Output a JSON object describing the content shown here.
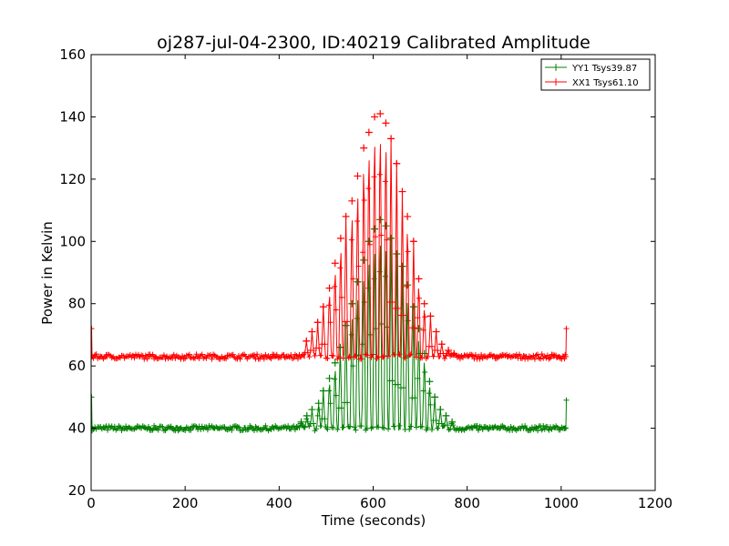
{
  "chart_data": {
    "type": "line",
    "title": "oj287-jul-04-2300, ID:40219 Calibrated Amplitude",
    "xlabel": "Time (seconds)",
    "ylabel": "Power in Kelvin",
    "xlim": [
      0,
      1200
    ],
    "ylim": [
      20,
      160
    ],
    "xticks": [
      0,
      200,
      400,
      600,
      800,
      1000,
      1200
    ],
    "yticks": [
      20,
      40,
      60,
      80,
      100,
      120,
      140,
      160
    ],
    "xtick_labels": [
      "0",
      "200",
      "400",
      "600",
      "800",
      "1000",
      "1200"
    ],
    "ytick_labels": [
      "20",
      "40",
      "60",
      "80",
      "100",
      "120",
      "140",
      "160"
    ],
    "grid": false,
    "legend_position": "top-right",
    "marker": "+",
    "series": [
      {
        "name": "YY1 Tsys39.87",
        "color": "#008000",
        "baseline": 40,
        "start_value": 50,
        "end_value": 49,
        "peaks": [
          [
            447,
            42
          ],
          [
            459,
            44
          ],
          [
            470,
            46
          ],
          [
            484,
            48
          ],
          [
            494,
            52
          ],
          [
            507,
            56
          ],
          [
            519,
            61
          ],
          [
            530,
            66
          ],
          [
            542,
            73
          ],
          [
            555,
            80
          ],
          [
            567,
            87
          ],
          [
            580,
            94
          ],
          [
            591,
            100
          ],
          [
            603,
            104
          ],
          [
            615,
            107
          ],
          [
            627,
            105
          ],
          [
            638,
            101
          ],
          [
            650,
            96
          ],
          [
            662,
            92
          ],
          [
            673,
            86
          ],
          [
            686,
            79
          ],
          [
            697,
            72
          ],
          [
            709,
            64
          ],
          [
            720,
            55
          ],
          [
            731,
            50
          ],
          [
            743,
            46
          ],
          [
            755,
            44
          ],
          [
            768,
            42
          ]
        ],
        "x_start": 2,
        "x_end": 1010
      },
      {
        "name": "XX1 Tsys61.10",
        "color": "#ff0000",
        "baseline": 63,
        "start_value": 72,
        "end_value": 72,
        "peaks": [
          [
            458,
            68
          ],
          [
            470,
            71
          ],
          [
            482,
            74
          ],
          [
            494,
            79
          ],
          [
            507,
            85
          ],
          [
            519,
            93
          ],
          [
            531,
            101
          ],
          [
            542,
            108
          ],
          [
            555,
            113
          ],
          [
            567,
            121
          ],
          [
            580,
            130
          ],
          [
            591,
            135
          ],
          [
            603,
            140
          ],
          [
            615,
            141
          ],
          [
            627,
            138
          ],
          [
            638,
            133
          ],
          [
            650,
            125
          ],
          [
            662,
            116
          ],
          [
            673,
            108
          ],
          [
            686,
            100
          ],
          [
            697,
            88
          ],
          [
            709,
            80
          ],
          [
            722,
            76
          ],
          [
            734,
            71
          ],
          [
            746,
            67
          ],
          [
            760,
            65
          ],
          [
            772,
            64
          ]
        ],
        "x_start": 2,
        "x_end": 1010
      }
    ]
  }
}
